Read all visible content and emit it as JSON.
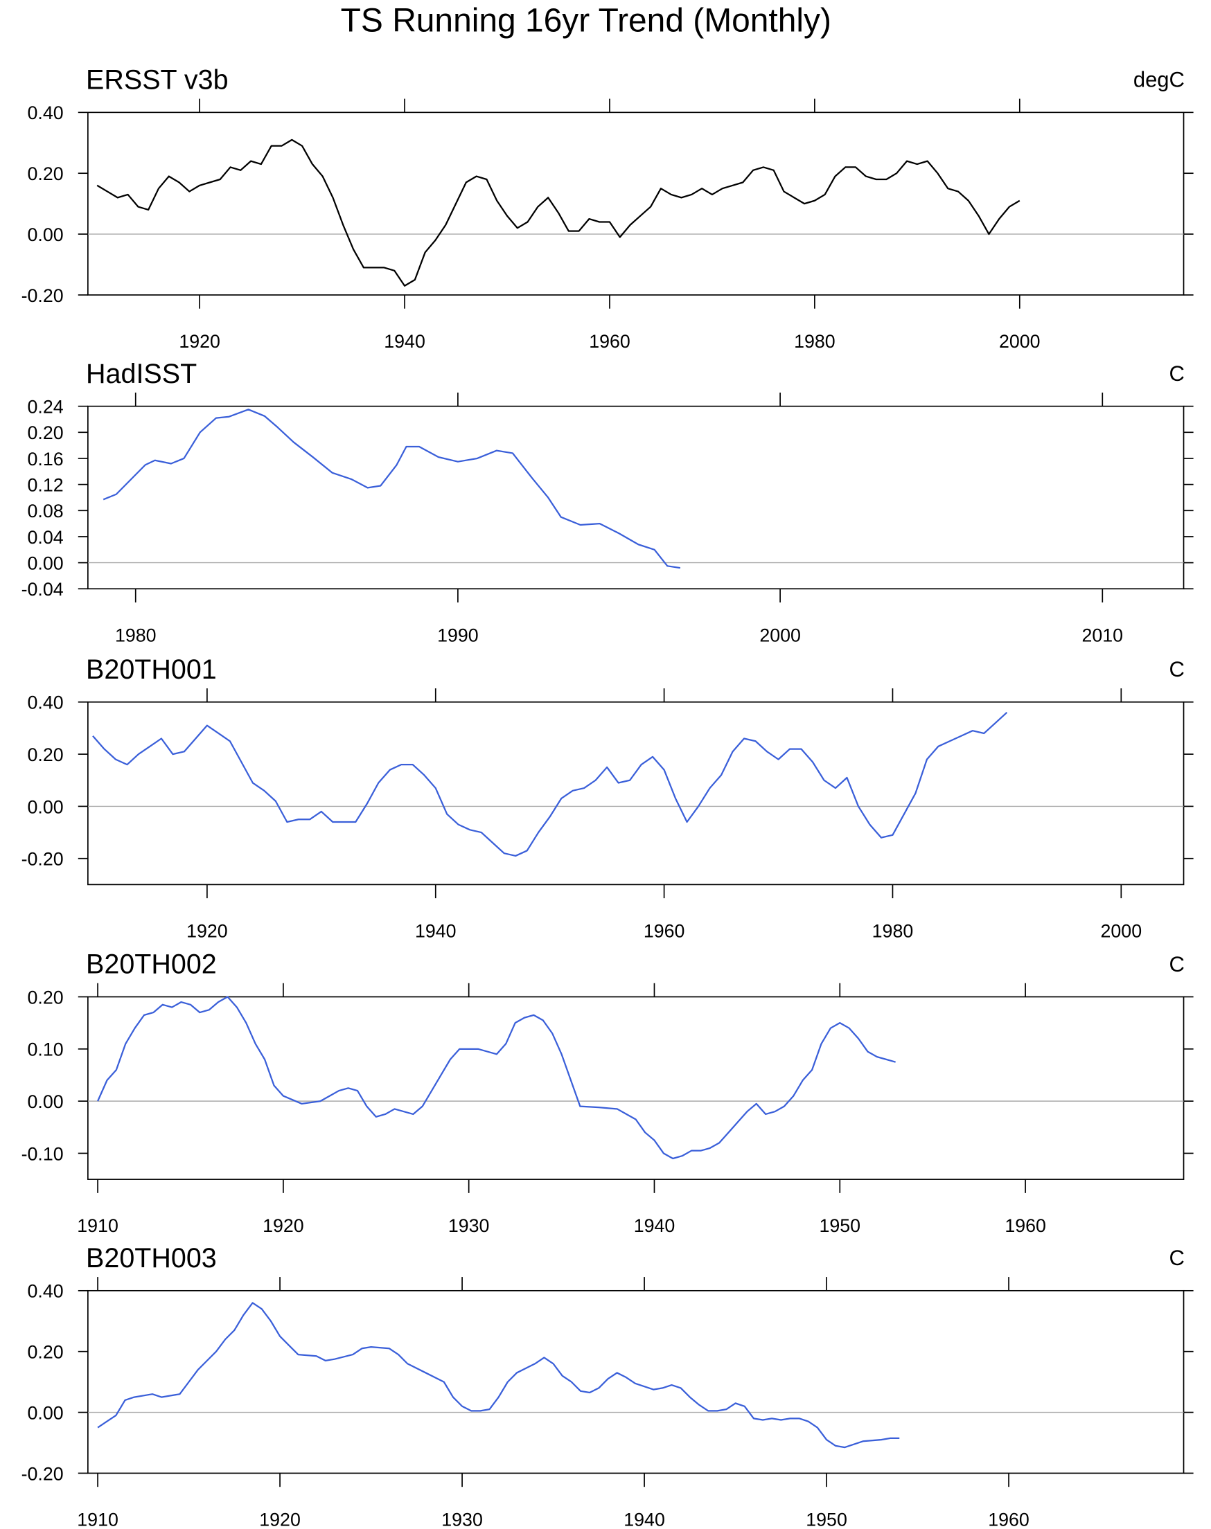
{
  "title": "TS Running 16yr Trend (Monthly)",
  "chart_data": [
    {
      "type": "line",
      "title": "ERSST v3b",
      "units": "degC",
      "color": "#000000",
      "zero_line": true,
      "xlim": [
        1909.1,
        2016
      ],
      "ylim": [
        -0.2,
        0.4
      ],
      "xticks": [
        1920,
        1940,
        1960,
        1980,
        2000
      ],
      "yticks": [
        {
          "value": -0.2,
          "label": "-0.20"
        },
        {
          "value": 0,
          "label": "0.00"
        },
        {
          "value": 0.2,
          "label": "0.20"
        },
        {
          "value": 0.4,
          "label": "0.40"
        }
      ],
      "x": [
        1910,
        1911,
        1912,
        1913,
        1914,
        1915,
        1916,
        1917,
        1918,
        1919,
        1920,
        1921,
        1922,
        1923,
        1924,
        1925,
        1926,
        1927,
        1928,
        1929,
        1930,
        1931,
        1932,
        1933,
        1934,
        1935,
        1936,
        1937,
        1938,
        1939,
        1940,
        1941,
        1942,
        1943,
        1944,
        1945,
        1946,
        1947,
        1948,
        1949,
        1950,
        1951,
        1952,
        1953,
        1954,
        1955,
        1956,
        1957,
        1958,
        1959,
        1960,
        1961,
        1962,
        1963,
        1964,
        1965,
        1966,
        1967,
        1968,
        1969,
        1970,
        1971,
        1972,
        1973,
        1974,
        1975,
        1976,
        1977,
        1978,
        1979,
        1980,
        1981,
        1982,
        1983,
        1984,
        1985,
        1986,
        1987,
        1988,
        1989,
        1990,
        1991,
        1992,
        1993,
        1994,
        1995,
        1996,
        1997,
        1998,
        1999,
        2000
      ],
      "values": [
        0.16,
        0.14,
        0.12,
        0.13,
        0.09,
        0.08,
        0.15,
        0.19,
        0.17,
        0.14,
        0.16,
        0.17,
        0.18,
        0.22,
        0.21,
        0.24,
        0.23,
        0.29,
        0.29,
        0.31,
        0.29,
        0.23,
        0.19,
        0.12,
        0.03,
        -0.05,
        -0.11,
        -0.11,
        -0.11,
        -0.12,
        -0.17,
        -0.15,
        -0.06,
        -0.02,
        0.03,
        0.1,
        0.17,
        0.19,
        0.18,
        0.11,
        0.06,
        0.02,
        0.04,
        0.09,
        0.12,
        0.07,
        0.01,
        0.01,
        0.05,
        0.04,
        0.04,
        -0.01,
        0.03,
        0.06,
        0.09,
        0.15,
        0.13,
        0.12,
        0.13,
        0.15,
        0.13,
        0.15,
        0.16,
        0.17,
        0.21,
        0.22,
        0.21,
        0.14,
        0.12,
        0.1,
        0.11,
        0.13,
        0.19,
        0.22,
        0.22,
        0.19,
        0.18,
        0.18,
        0.2,
        0.24,
        0.23,
        0.24,
        0.2,
        0.15,
        0.14,
        0.11,
        0.06,
        0,
        0.05,
        0.09,
        0.11
      ]
    },
    {
      "type": "line",
      "title": "HadISST",
      "units": "C",
      "color": "#3a5fd9",
      "zero_line": true,
      "xlim": [
        1978.52,
        2012.52
      ],
      "ylim": [
        -0.04,
        0.24
      ],
      "xticks": [
        1980,
        1990,
        2000,
        2010
      ],
      "yticks": [
        {
          "value": -0.04,
          "label": "-0.04"
        },
        {
          "value": 0,
          "label": "0.00"
        },
        {
          "value": 0.04,
          "label": "0.04"
        },
        {
          "value": 0.08,
          "label": "0.08"
        },
        {
          "value": 0.12,
          "label": "0.12"
        },
        {
          "value": 0.16,
          "label": "0.16"
        },
        {
          "value": 0.2,
          "label": "0.20"
        },
        {
          "value": 0.24,
          "label": "0.24"
        }
      ],
      "x": [
        1979.0,
        1979.4,
        1979.7,
        1980.3,
        1980.6,
        1981.1,
        1981.5,
        1982.0,
        1982.5,
        1982.9,
        1983.5,
        1984.0,
        1984.4,
        1984.9,
        1985.5,
        1986.1,
        1986.7,
        1987.2,
        1987.6,
        1988.1,
        1988.4,
        1988.8,
        1989.4,
        1990.0,
        1990.6,
        1991.2,
        1991.7,
        1992.3,
        1992.8,
        1993.2,
        1993.8,
        1994.4,
        1995.0,
        1995.6,
        1996.1,
        1996.5,
        1996.9
      ],
      "values": [
        0.097,
        0.105,
        0.12,
        0.15,
        0.157,
        0.152,
        0.16,
        0.2,
        0.222,
        0.224,
        0.235,
        0.225,
        0.208,
        0.185,
        0.162,
        0.138,
        0.128,
        0.115,
        0.118,
        0.15,
        0.178,
        0.178,
        0.162,
        0.155,
        0.16,
        0.172,
        0.168,
        0.13,
        0.1,
        0.07,
        0.058,
        0.06,
        0.045,
        0.028,
        0.02,
        -0.005,
        -0.008
      ]
    },
    {
      "type": "line",
      "title": "B20TH001",
      "units": "C",
      "color": "#3a5fd9",
      "zero_line": true,
      "xlim": [
        1909.57,
        2005.47
      ],
      "ylim": [
        -0.3,
        0.4
      ],
      "xticks": [
        1920,
        1940,
        1960,
        1980,
        2000
      ],
      "yticks": [
        {
          "value": -0.2,
          "label": "-0.20"
        },
        {
          "value": 0,
          "label": "0.00"
        },
        {
          "value": 0.2,
          "label": "0.20"
        },
        {
          "value": 0.4,
          "label": "0.40"
        }
      ],
      "x": [
        1910,
        1911,
        1912,
        1913,
        1914,
        1915,
        1916,
        1917,
        1918,
        1919,
        1920,
        1921,
        1922,
        1923,
        1924,
        1925,
        1926,
        1927,
        1928,
        1929,
        1930,
        1931,
        1932,
        1933,
        1934,
        1935,
        1936,
        1937,
        1938,
        1939,
        1940,
        1941,
        1942,
        1943,
        1944,
        1945,
        1946,
        1947,
        1948,
        1949,
        1950,
        1951,
        1952,
        1953,
        1954,
        1955,
        1956,
        1957,
        1958,
        1959,
        1960,
        1961,
        1962,
        1963,
        1964,
        1965,
        1966,
        1967,
        1968,
        1969,
        1970,
        1971,
        1972,
        1973,
        1974,
        1975,
        1976,
        1977,
        1978,
        1979,
        1980,
        1981,
        1982,
        1983,
        1984,
        1985,
        1986,
        1987,
        1988,
        1989,
        1990
      ],
      "values": [
        0.27,
        0.22,
        0.18,
        0.16,
        0.2,
        0.23,
        0.26,
        0.2,
        0.21,
        0.26,
        0.31,
        0.28,
        0.25,
        0.17,
        0.09,
        0.06,
        0.02,
        -0.06,
        -0.05,
        -0.05,
        -0.02,
        -0.06,
        -0.06,
        -0.06,
        0.01,
        0.09,
        0.14,
        0.16,
        0.16,
        0.12,
        0.07,
        -0.03,
        -0.07,
        -0.09,
        -0.1,
        -0.14,
        -0.18,
        -0.19,
        -0.17,
        -0.1,
        -0.04,
        0.03,
        0.06,
        0.07,
        0.1,
        0.15,
        0.09,
        0.1,
        0.16,
        0.19,
        0.14,
        0.03,
        -0.06,
        0,
        0.07,
        0.12,
        0.21,
        0.26,
        0.25,
        0.21,
        0.18,
        0.22,
        0.22,
        0.17,
        0.1,
        0.07,
        0.11,
        0,
        -0.07,
        -0.12,
        -0.11,
        -0.03,
        0.05,
        0.18,
        0.23,
        0.25,
        0.27,
        0.29,
        0.28,
        0.32,
        0.36
      ]
    },
    {
      "type": "line",
      "title": "B20TH002",
      "units": "C",
      "color": "#3a5fd9",
      "zero_line": true,
      "xlim": [
        1909.47,
        1968.53
      ],
      "ylim": [
        -0.15,
        0.2
      ],
      "xticks": [
        1910,
        1920,
        1930,
        1940,
        1950,
        1960
      ],
      "yticks": [
        {
          "value": -0.1,
          "label": "-0.10"
        },
        {
          "value": 0,
          "label": "0.00"
        },
        {
          "value": 0.1,
          "label": "0.10"
        },
        {
          "value": 0.2,
          "label": "0.20"
        }
      ],
      "x": [
        1910,
        1910.5,
        1911,
        1911.5,
        1912,
        1912.5,
        1913,
        1913.5,
        1914,
        1914.5,
        1915,
        1915.5,
        1916,
        1916.5,
        1917,
        1917.5,
        1918,
        1918.5,
        1919,
        1919.5,
        1920,
        1921,
        1922,
        1922.5,
        1923,
        1923.5,
        1924,
        1924.5,
        1925,
        1925.5,
        1926,
        1926.5,
        1927,
        1927.5,
        1928,
        1928.5,
        1929,
        1929.5,
        1930,
        1930.5,
        1931,
        1931.5,
        1932,
        1932.5,
        1933,
        1933.5,
        1934,
        1934.5,
        1935,
        1935.5,
        1936,
        1937,
        1938,
        1938.5,
        1939,
        1939.5,
        1940,
        1940.5,
        1941,
        1941.5,
        1942,
        1942.5,
        1943,
        1943.5,
        1944,
        1944.5,
        1945,
        1945.5,
        1946,
        1946.5,
        1947,
        1947.5,
        1948,
        1948.5,
        1949,
        1949.5,
        1950,
        1950.5,
        1951,
        1951.5,
        1952,
        1952.5,
        1953
      ],
      "values": [
        0,
        0.04,
        0.06,
        0.11,
        0.14,
        0.165,
        0.17,
        0.185,
        0.18,
        0.19,
        0.185,
        0.17,
        0.175,
        0.19,
        0.2,
        0.18,
        0.15,
        0.11,
        0.08,
        0.03,
        0.01,
        -0.005,
        0,
        0.01,
        0.02,
        0.025,
        0.02,
        -0.01,
        -0.03,
        -0.025,
        -0.015,
        -0.02,
        -0.025,
        -0.01,
        0.02,
        0.05,
        0.08,
        0.1,
        0.1,
        0.1,
        0.095,
        0.09,
        0.11,
        0.15,
        0.16,
        0.165,
        0.155,
        0.13,
        0.09,
        0.04,
        -0.01,
        -0.012,
        -0.015,
        -0.025,
        -0.035,
        -0.06,
        -0.075,
        -0.1,
        -0.11,
        -0.105,
        -0.095,
        -0.095,
        -0.09,
        -0.08,
        -0.06,
        -0.04,
        -0.02,
        -0.005,
        -0.025,
        -0.02,
        -0.01,
        0.01,
        0.04,
        0.06,
        0.11,
        0.14,
        0.15,
        0.14,
        0.12,
        0.095,
        0.085,
        0.08,
        0.075
      ]
    },
    {
      "type": "line",
      "title": "B20TH003",
      "units": "C",
      "color": "#3a5fd9",
      "zero_line": true,
      "xlim": [
        1909.46,
        1969.6
      ],
      "ylim": [
        -0.2,
        0.4
      ],
      "xticks": [
        1910,
        1920,
        1930,
        1940,
        1950,
        1960
      ],
      "yticks": [
        {
          "value": -0.2,
          "label": "-0.20"
        },
        {
          "value": 0,
          "label": "0.00"
        },
        {
          "value": 0.2,
          "label": "0.20"
        },
        {
          "value": 0.4,
          "label": "0.40"
        }
      ],
      "x": [
        1910,
        1910.5,
        1911,
        1911.5,
        1912,
        1913,
        1913.5,
        1914,
        1914.5,
        1915,
        1915.5,
        1916,
        1916.5,
        1917,
        1917.5,
        1918,
        1918.5,
        1919,
        1919.5,
        1920,
        1920.5,
        1921,
        1922,
        1922.5,
        1923,
        1924,
        1924.5,
        1925,
        1926,
        1926.5,
        1927,
        1928,
        1929,
        1929.5,
        1930,
        1930.5,
        1931,
        1931.5,
        1932,
        1932.5,
        1933,
        1934,
        1934.5,
        1935,
        1935.5,
        1936,
        1936.5,
        1937,
        1937.5,
        1938,
        1938.5,
        1939,
        1939.5,
        1940,
        1940.5,
        1941,
        1941.5,
        1942,
        1942.5,
        1943,
        1943.5,
        1944,
        1944.5,
        1945,
        1945.5,
        1946,
        1946.5,
        1947,
        1947.5,
        1948,
        1948.5,
        1949,
        1949.5,
        1950,
        1950.5,
        1951,
        1951.5,
        1952,
        1953,
        1953.5,
        1954
      ],
      "values": [
        -0.05,
        -0.03,
        -0.01,
        0.04,
        0.05,
        0.06,
        0.05,
        0.055,
        0.06,
        0.1,
        0.14,
        0.17,
        0.2,
        0.24,
        0.27,
        0.32,
        0.36,
        0.34,
        0.3,
        0.25,
        0.22,
        0.19,
        0.185,
        0.17,
        0.175,
        0.19,
        0.21,
        0.215,
        0.21,
        0.19,
        0.16,
        0.13,
        0.1,
        0.05,
        0.02,
        0.005,
        0.005,
        0.01,
        0.05,
        0.1,
        0.13,
        0.16,
        0.18,
        0.16,
        0.12,
        0.1,
        0.07,
        0.065,
        0.08,
        0.11,
        0.13,
        0.115,
        0.095,
        0.085,
        0.075,
        0.08,
        0.09,
        0.08,
        0.05,
        0.025,
        0.005,
        0.005,
        0.01,
        0.03,
        0.02,
        -0.02,
        -0.025,
        -0.02,
        -0.025,
        -0.02,
        -0.02,
        -0.03,
        -0.05,
        -0.09,
        -0.11,
        -0.115,
        -0.105,
        -0.095,
        -0.09,
        -0.085,
        -0.085
      ]
    }
  ]
}
